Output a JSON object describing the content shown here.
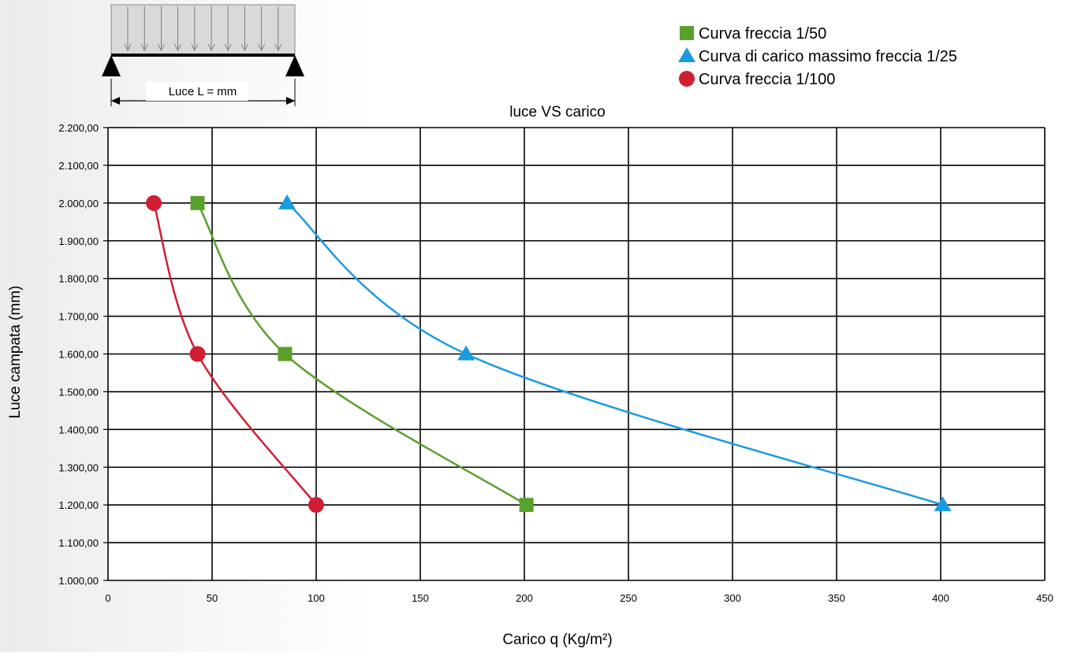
{
  "inset": {
    "span_label": "Luce L = mm"
  },
  "chart_data": {
    "type": "line",
    "title": "luce VS carico",
    "xlabel": "Carico q (Kg/m²)",
    "ylabel": "Luce campata (mm)",
    "xlim": [
      0,
      450
    ],
    "ylim": [
      1000,
      2200
    ],
    "x_ticks": [
      "0",
      "50",
      "100",
      "150",
      "200",
      "250",
      "300",
      "350",
      "400",
      "450"
    ],
    "y_ticks": [
      "1.000,00",
      "1.100,00",
      "1.200,00",
      "1.300,00",
      "1.400,00",
      "1.500,00",
      "1.600,00",
      "1.700,00",
      "1.800,00",
      "1.900,00",
      "2.000,00",
      "2.100,00",
      "2.200,00"
    ],
    "grid": true,
    "legend_position": "top-right",
    "series": [
      {
        "name": "Curva freccia 1/50",
        "marker": "square",
        "color": "#5aa02c",
        "points": [
          [
            43,
            2000
          ],
          [
            85,
            1600
          ],
          [
            201,
            1200
          ]
        ]
      },
      {
        "name": "Curva di carico massimo freccia 1/25",
        "marker": "triangle",
        "color": "#1a9be0",
        "points": [
          [
            86,
            2000
          ],
          [
            172,
            1600
          ],
          [
            401,
            1200
          ]
        ]
      },
      {
        "name": "Curva freccia 1/100",
        "marker": "circle",
        "color": "#d01e32",
        "points": [
          [
            22,
            2000
          ],
          [
            43,
            1600
          ],
          [
            100,
            1200
          ]
        ]
      }
    ]
  }
}
